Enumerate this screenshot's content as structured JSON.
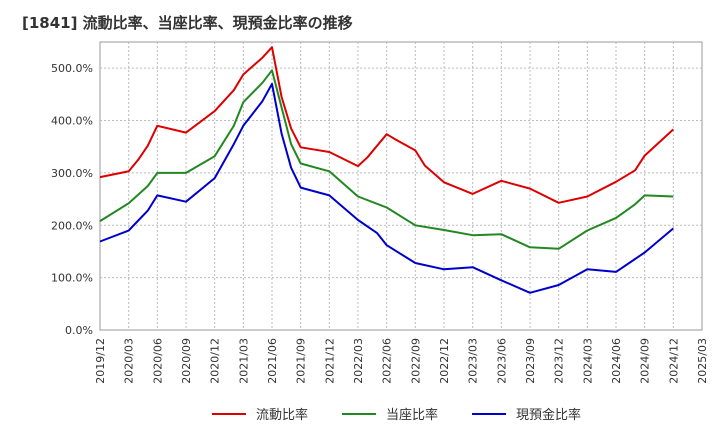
{
  "chart_data": {
    "type": "line",
    "title": "[1841]  流動比率、当座比率、現預金比率の推移",
    "xlabel": "",
    "ylabel": "",
    "ylim": [
      0,
      550
    ],
    "yticks": [
      0,
      100,
      200,
      300,
      400,
      500
    ],
    "ytick_labels": [
      "0.0%",
      "100.0%",
      "200.0%",
      "300.0%",
      "400.0%",
      "500.0%"
    ],
    "x_start": "2019/12",
    "x_end": "2025/03",
    "xticks": [
      "2019/12",
      "2020/03",
      "2020/06",
      "2020/09",
      "2020/12",
      "2021/03",
      "2021/06",
      "2021/09",
      "2021/12",
      "2022/03",
      "2022/06",
      "2022/09",
      "2022/12",
      "2023/03",
      "2023/06",
      "2023/09",
      "2023/12",
      "2024/03",
      "2024/06",
      "2024/09",
      "2024/12",
      "2025/03"
    ],
    "grid": true,
    "legend_position": "bottom",
    "series": [
      {
        "name": "流動比率",
        "color": "#dd0000",
        "x": [
          "2019/12",
          "2020/03",
          "2020/04",
          "2020/05",
          "2020/06",
          "2020/09",
          "2020/12",
          "2021/02",
          "2021/03",
          "2021/05",
          "2021/06",
          "2021/07",
          "2021/08",
          "2021/09",
          "2021/12",
          "2022/03",
          "2022/04",
          "2022/06",
          "2022/07",
          "2022/09",
          "2022/10",
          "2022/12",
          "2023/03",
          "2023/06",
          "2023/09",
          "2023/12",
          "2024/03",
          "2024/06",
          "2024/08",
          "2024/09",
          "2024/12"
        ],
        "values": [
          292,
          303,
          325,
          352,
          390,
          377,
          418,
          458,
          488,
          520,
          540,
          445,
          385,
          349,
          340,
          313,
          330,
          374,
          363,
          343,
          314,
          282,
          260,
          285,
          270,
          243,
          255,
          283,
          305,
          333,
          383
        ]
      },
      {
        "name": "当座比率",
        "color": "#228822",
        "x": [
          "2019/12",
          "2020/03",
          "2020/05",
          "2020/06",
          "2020/09",
          "2020/12",
          "2021/02",
          "2021/03",
          "2021/05",
          "2021/06",
          "2021/07",
          "2021/08",
          "2021/09",
          "2021/12",
          "2022/03",
          "2022/06",
          "2022/09",
          "2022/12",
          "2023/03",
          "2023/06",
          "2023/09",
          "2023/12",
          "2024/03",
          "2024/06",
          "2024/08",
          "2024/09",
          "2024/12"
        ],
        "values": [
          208,
          242,
          275,
          300,
          300,
          332,
          390,
          435,
          472,
          496,
          425,
          355,
          318,
          303,
          255,
          234,
          200,
          191,
          181,
          183,
          158,
          155,
          190,
          214,
          240,
          257,
          255
        ]
      },
      {
        "name": "現預金比率",
        "color": "#0000cc",
        "x": [
          "2019/12",
          "2020/03",
          "2020/05",
          "2020/06",
          "2020/09",
          "2020/12",
          "2021/02",
          "2021/03",
          "2021/05",
          "2021/06",
          "2021/07",
          "2021/08",
          "2021/09",
          "2021/12",
          "2022/03",
          "2022/05",
          "2022/06",
          "2022/09",
          "2022/12",
          "2023/03",
          "2023/06",
          "2023/09",
          "2023/12",
          "2024/03",
          "2024/06",
          "2024/09",
          "2024/12"
        ],
        "values": [
          169,
          190,
          228,
          257,
          245,
          290,
          355,
          390,
          437,
          470,
          375,
          310,
          272,
          257,
          210,
          185,
          162,
          128,
          116,
          120,
          95,
          71,
          86,
          116,
          111,
          148,
          194
        ]
      }
    ]
  }
}
